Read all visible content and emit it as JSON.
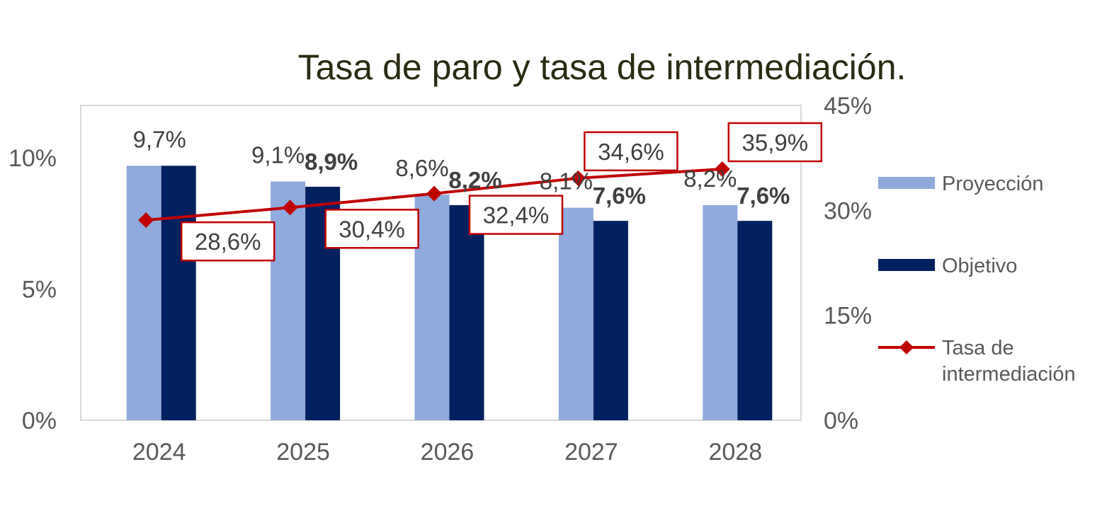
{
  "chart_data": {
    "type": "bar",
    "title": "Tasa de paro y tasa de intermediación.",
    "categories": [
      "2024",
      "2025",
      "2026",
      "2027",
      "2028"
    ],
    "y_left": {
      "ticks": [
        "0%",
        "5%",
        "10%"
      ],
      "range": [
        0,
        12
      ]
    },
    "y_right": {
      "ticks": [
        "0%",
        "15%",
        "30%",
        "45%"
      ],
      "range": [
        0,
        45
      ]
    },
    "series": [
      {
        "name": "Proyección",
        "type": "bar",
        "axis": "left",
        "color": "#8faadc",
        "values": [
          9.7,
          9.1,
          8.6,
          8.1,
          8.2
        ],
        "labels": [
          "9,7%",
          "9,1%",
          "8,6%",
          "8,1%",
          "8,2%"
        ]
      },
      {
        "name": "Objetivo",
        "type": "bar",
        "axis": "left",
        "color": "#002060",
        "values": [
          9.7,
          8.9,
          8.2,
          7.6,
          7.6
        ],
        "labels": [
          "",
          "8,9%",
          "8,2%",
          "7,6%",
          "7,6%"
        ]
      },
      {
        "name": "Tasa de intermediación",
        "name_lines": [
          "Tasa de",
          "intermediación"
        ],
        "type": "line",
        "axis": "right",
        "color": "#c00000",
        "values": [
          28.6,
          30.4,
          32.4,
          34.6,
          35.9
        ],
        "labels": [
          "28,6%",
          "30,4%",
          "32,4%",
          "34,6%",
          "35,9%"
        ]
      }
    ],
    "legend_position": "right",
    "grid": false
  }
}
